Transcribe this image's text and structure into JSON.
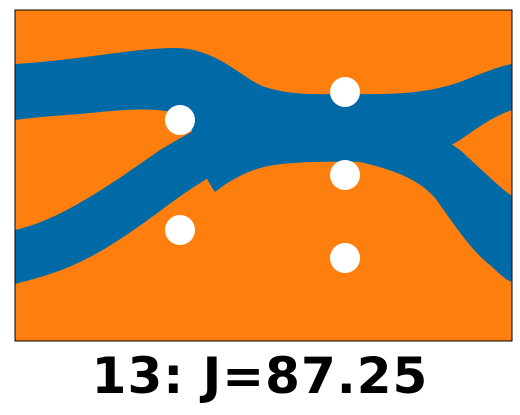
{
  "colors": {
    "background_region": "#ff7f0e",
    "channel_region": "#006aa6",
    "obstacle": "#ffffff",
    "frame": "#000000"
  },
  "obstacles": [
    {
      "name": "obstacle-left-upper"
    },
    {
      "name": "obstacle-left-lower"
    },
    {
      "name": "obstacle-right-top"
    },
    {
      "name": "obstacle-right-middle"
    },
    {
      "name": "obstacle-right-bottom"
    }
  ],
  "caption": {
    "text": "13: J=87.25"
  }
}
